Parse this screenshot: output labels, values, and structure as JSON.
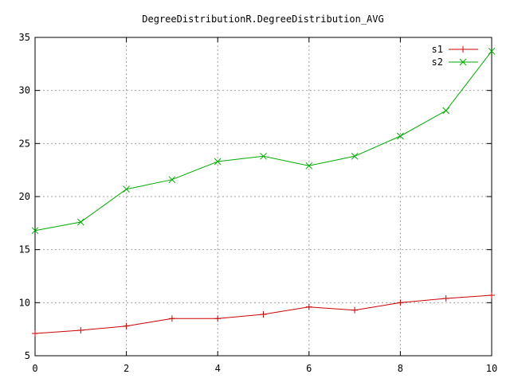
{
  "chart_data": {
    "type": "line",
    "title": "DegreeDistributionR.DegreeDistribution_AVG",
    "xlabel": "",
    "ylabel": "",
    "xlim": [
      0,
      10
    ],
    "ylim": [
      5,
      35
    ],
    "x_ticks": [
      0,
      2,
      4,
      6,
      8,
      10
    ],
    "y_ticks": [
      5,
      10,
      15,
      20,
      25,
      30,
      35
    ],
    "grid": true,
    "legend_position": "top-right",
    "x": [
      0,
      1,
      2,
      3,
      4,
      5,
      6,
      7,
      8,
      9,
      10
    ],
    "series": [
      {
        "name": "s1",
        "color": "#cc0000",
        "marker": "plus",
        "values": [
          7.1,
          7.4,
          7.8,
          8.5,
          8.5,
          8.9,
          9.6,
          9.3,
          10.0,
          10.4,
          10.7
        ]
      },
      {
        "name": "s2",
        "color": "#00aa00",
        "marker": "cross",
        "values": [
          16.8,
          17.6,
          20.7,
          21.6,
          23.3,
          23.8,
          22.9,
          23.8,
          25.7,
          28.1,
          33.7
        ]
      }
    ]
  }
}
